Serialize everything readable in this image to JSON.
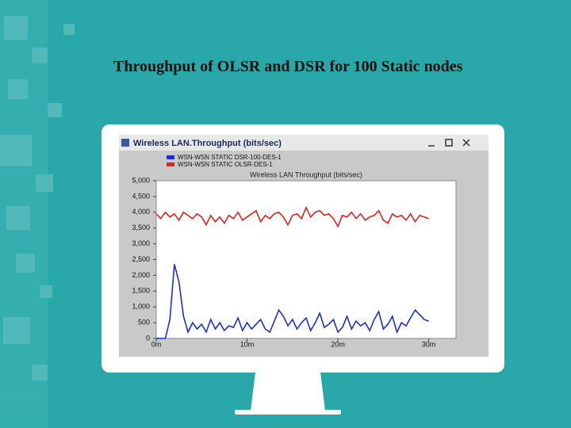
{
  "slide": {
    "title": "Throughput of OLSR and DSR for 100 Static nodes"
  },
  "chart_data": {
    "type": "line",
    "window_title": "Wireless LAN.Throughput (bits/sec)",
    "title": "Wireless LAN Throughput (bits/sec)",
    "x": [
      0,
      0.5,
      1,
      1.5,
      2,
      2.5,
      3,
      3.5,
      4,
      4.5,
      5,
      5.5,
      6,
      6.5,
      7,
      7.5,
      8,
      8.5,
      9,
      9.5,
      10,
      10.5,
      11,
      11.5,
      12,
      12.5,
      13,
      13.5,
      14,
      14.5,
      15,
      15.5,
      16,
      16.5,
      17,
      17.5,
      18,
      18.5,
      19,
      19.5,
      20,
      20.5,
      21,
      21.5,
      22,
      22.5,
      23,
      23.5,
      24,
      24.5,
      25,
      25.5,
      26,
      26.5,
      27,
      27.5,
      28,
      28.5,
      29,
      29.5,
      30
    ],
    "series": [
      {
        "name": "WSN-WSN STATIC DSR-100-DES-1",
        "color": "#1b2fd0",
        "values": [
          0,
          0,
          0,
          600,
          2350,
          1800,
          700,
          200,
          500,
          300,
          450,
          200,
          600,
          300,
          500,
          250,
          400,
          350,
          650,
          250,
          500,
          300,
          450,
          600,
          300,
          200,
          550,
          900,
          700,
          400,
          600,
          300,
          500,
          650,
          250,
          500,
          800,
          350,
          450,
          600,
          200,
          350,
          700,
          300,
          550,
          400,
          500,
          250,
          600,
          850,
          300,
          450,
          700,
          200,
          500,
          400,
          650,
          900,
          750,
          600,
          550
        ]
      },
      {
        "name": "WSN-WSN STATIC OLSR-DES-1",
        "color": "#e0221f",
        "values": [
          3950,
          3800,
          4000,
          3850,
          3950,
          3750,
          4000,
          3900,
          3800,
          3950,
          3850,
          3600,
          3900,
          3700,
          3850,
          3650,
          3900,
          3800,
          4000,
          3750,
          3850,
          3950,
          4050,
          3700,
          3900,
          3800,
          3950,
          4000,
          3850,
          3600,
          3900,
          3950,
          3800,
          4150,
          3850,
          4000,
          4050,
          3900,
          3950,
          3800,
          3550,
          3900,
          3850,
          4000,
          3800,
          3950,
          3750,
          3850,
          3900,
          4050,
          3750,
          3650,
          3950,
          3850,
          3900,
          3750,
          3950,
          3700,
          3900,
          3850,
          3800
        ]
      }
    ],
    "xlim": [
      0,
      33
    ],
    "xticks": [
      {
        "value": 0,
        "label": "0m"
      },
      {
        "value": 10,
        "label": "10m"
      },
      {
        "value": 20,
        "label": "20m"
      },
      {
        "value": 30,
        "label": "30m"
      }
    ],
    "ylim": [
      0,
      5000
    ],
    "yticks": [
      0,
      500,
      {
        "value": 1000,
        "label": "1,000"
      },
      {
        "value": 1500,
        "label": "1,500"
      },
      {
        "value": 2000,
        "label": "2,000"
      },
      {
        "value": 2500,
        "label": "2,500"
      },
      {
        "value": 3000,
        "label": "3,000"
      },
      {
        "value": 3500,
        "label": "3,500"
      },
      {
        "value": 4000,
        "label": "4,000"
      },
      {
        "value": 4500,
        "label": "4,500"
      },
      {
        "value": 5000,
        "label": "5,000"
      }
    ]
  }
}
